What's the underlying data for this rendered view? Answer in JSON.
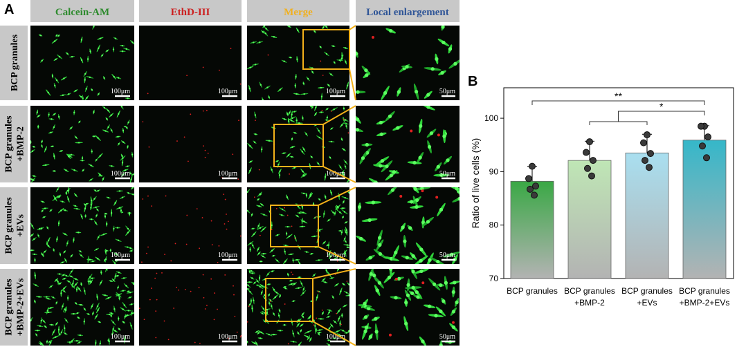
{
  "panel_labels": [
    "A",
    "B"
  ],
  "panel_a": {
    "columns": [
      "Calcein-AM",
      "EthD-III",
      "Merge",
      "Local enlargement"
    ],
    "rows": [
      [
        "BCP granules"
      ],
      [
        "BCP granules",
        "+BMP-2"
      ],
      [
        "BCP granules",
        "+EVs"
      ],
      [
        "BCP granules",
        "+BMP-2+EVs"
      ]
    ],
    "scale_bars": [
      "100μm",
      "100μm",
      "100μm",
      "50μm"
    ]
  },
  "chart_data": {
    "type": "bar",
    "ylabel": "Ratio of live cells (%)",
    "categories": [
      [
        "BCP granules"
      ],
      [
        "BCP granules",
        "+BMP-2"
      ],
      [
        "BCP granules",
        "+EVs"
      ],
      [
        "BCP granules",
        "+BMP-2+EVs"
      ]
    ],
    "values": [
      88.2,
      92.1,
      93.5,
      95.9
    ],
    "errors": [
      2.8,
      3.6,
      3.5,
      2.7
    ],
    "points": [
      [
        91.0,
        88.7,
        87.3,
        86.7,
        85.6
      ],
      [
        95.6,
        93.6,
        92.1,
        90.6,
        89.2
      ],
      [
        96.9,
        95.4,
        93.4,
        92.1,
        90.8
      ],
      [
        98.5,
        98.5,
        96.5,
        94.8,
        92.6
      ]
    ],
    "colors": [
      "#3aa845",
      "#bfe6b5",
      "#a9dff0",
      "#35b7c9"
    ],
    "annotations": [
      "**",
      "*"
    ],
    "ylim": [
      70,
      105.7
    ],
    "yticks": [
      70,
      80,
      90,
      100
    ]
  }
}
